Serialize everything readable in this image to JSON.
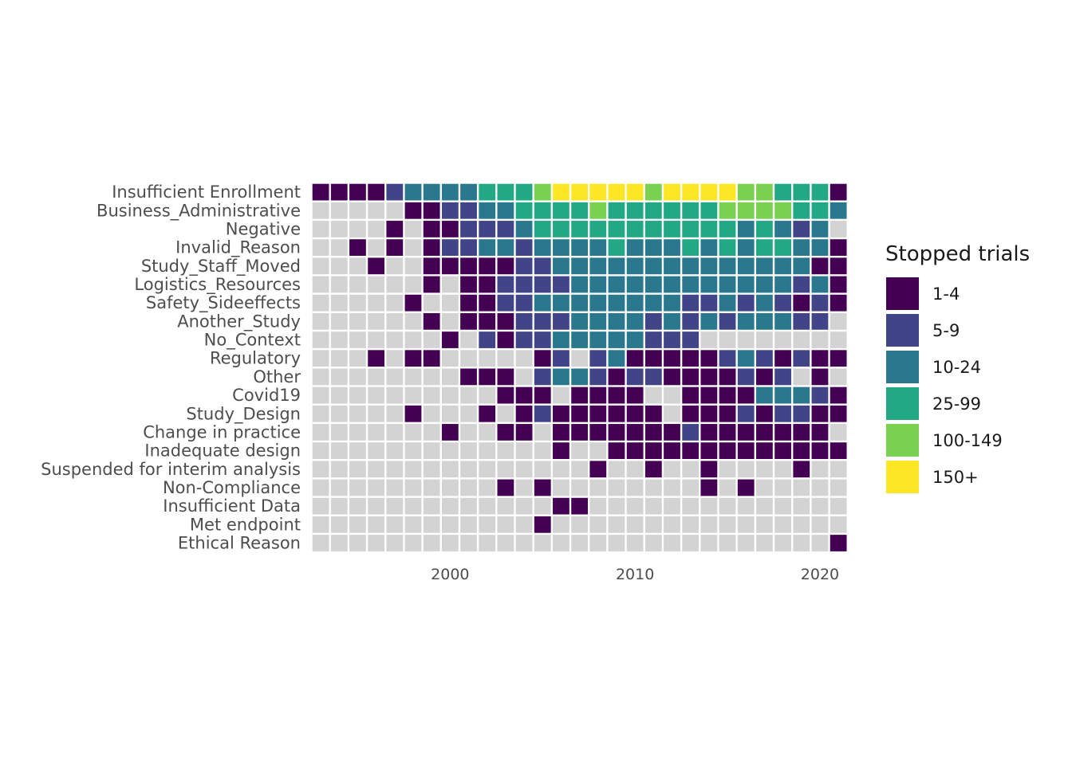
{
  "chart_data": {
    "type": "heatmap",
    "x": [
      1993,
      1994,
      1995,
      1996,
      1997,
      1998,
      1999,
      2000,
      2001,
      2002,
      2003,
      2004,
      2005,
      2006,
      2007,
      2008,
      2009,
      2010,
      2011,
      2012,
      2013,
      2014,
      2015,
      2016,
      2017,
      2018,
      2019,
      2020,
      2021
    ],
    "x_ticks": [
      2000,
      2010,
      2020
    ],
    "x_tick_labels": [
      "2000",
      "2010",
      "2020"
    ],
    "rows": [
      "Insufficient Enrollment",
      "Business_Administrative",
      "Negative",
      "Invalid_Reason",
      "Study_Staff_Moved",
      "Logistics_Resources",
      "Safety_Sideeffects",
      "Another_Study",
      "No_Context",
      "Regulatory",
      "Other",
      "Covid19",
      "Study_Design",
      "Change in practice",
      "Inadequate design",
      "Suspended for interim analysis",
      "Non-Compliance",
      "Insufficient Data",
      "Met endpoint",
      "Ethical Reason"
    ],
    "category_codes": "0 = none, 1 = 1-4, 2 = 5-9, 3 = 10-24, 4 = 25-99, 5 = 100-149, 6 = 150+",
    "values": [
      [
        1,
        1,
        1,
        1,
        2,
        3,
        3,
        3,
        3,
        4,
        4,
        4,
        5,
        6,
        6,
        6,
        6,
        6,
        5,
        6,
        6,
        6,
        6,
        5,
        5,
        4,
        4,
        4,
        1
      ],
      [
        0,
        0,
        0,
        0,
        0,
        1,
        1,
        2,
        2,
        3,
        3,
        4,
        4,
        4,
        4,
        5,
        4,
        4,
        4,
        4,
        4,
        4,
        5,
        5,
        5,
        5,
        4,
        4,
        3
      ],
      [
        0,
        0,
        0,
        0,
        1,
        0,
        1,
        1,
        2,
        2,
        2,
        3,
        4,
        4,
        4,
        4,
        4,
        4,
        4,
        4,
        4,
        4,
        4,
        3,
        4,
        3,
        2,
        3,
        0
      ],
      [
        0,
        0,
        1,
        0,
        1,
        0,
        1,
        2,
        2,
        3,
        3,
        2,
        3,
        3,
        3,
        3,
        4,
        3,
        3,
        3,
        4,
        3,
        4,
        3,
        4,
        4,
        3,
        3,
        1
      ],
      [
        0,
        0,
        0,
        1,
        0,
        0,
        1,
        1,
        1,
        1,
        1,
        2,
        2,
        3,
        3,
        3,
        3,
        3,
        3,
        3,
        3,
        3,
        3,
        3,
        3,
        3,
        3,
        1,
        1
      ],
      [
        0,
        0,
        0,
        0,
        0,
        0,
        1,
        0,
        1,
        1,
        2,
        2,
        2,
        2,
        3,
        3,
        3,
        3,
        3,
        3,
        3,
        3,
        3,
        3,
        3,
        3,
        2,
        3,
        1
      ],
      [
        0,
        0,
        0,
        0,
        0,
        1,
        0,
        0,
        1,
        1,
        2,
        2,
        3,
        3,
        3,
        3,
        3,
        3,
        3,
        3,
        2,
        2,
        3,
        2,
        3,
        2,
        1,
        2,
        1
      ],
      [
        0,
        0,
        0,
        0,
        0,
        0,
        1,
        0,
        1,
        1,
        1,
        2,
        2,
        2,
        3,
        3,
        3,
        3,
        2,
        3,
        2,
        3,
        2,
        3,
        3,
        3,
        2,
        2,
        0
      ],
      [
        0,
        0,
        0,
        0,
        0,
        0,
        0,
        1,
        0,
        2,
        1,
        2,
        2,
        3,
        3,
        3,
        3,
        3,
        2,
        2,
        2,
        0,
        0,
        0,
        0,
        0,
        0,
        0,
        0
      ],
      [
        0,
        0,
        0,
        1,
        0,
        1,
        1,
        0,
        0,
        0,
        0,
        0,
        1,
        2,
        0,
        2,
        3,
        1,
        1,
        1,
        1,
        1,
        2,
        3,
        2,
        1,
        2,
        1,
        1
      ],
      [
        0,
        0,
        0,
        0,
        0,
        0,
        0,
        0,
        1,
        1,
        1,
        0,
        2,
        3,
        3,
        2,
        1,
        2,
        2,
        1,
        1,
        1,
        1,
        2,
        1,
        2,
        0,
        1,
        0
      ],
      [
        0,
        0,
        0,
        0,
        0,
        0,
        0,
        0,
        0,
        0,
        1,
        1,
        1,
        0,
        1,
        1,
        1,
        1,
        0,
        0,
        1,
        1,
        1,
        1,
        3,
        3,
        3,
        2,
        1
      ],
      [
        0,
        0,
        0,
        0,
        0,
        1,
        0,
        0,
        0,
        1,
        0,
        1,
        2,
        1,
        1,
        1,
        1,
        1,
        1,
        0,
        1,
        1,
        1,
        2,
        1,
        2,
        2,
        1,
        1
      ],
      [
        0,
        0,
        0,
        0,
        0,
        0,
        0,
        1,
        0,
        0,
        1,
        1,
        0,
        1,
        1,
        1,
        1,
        1,
        1,
        1,
        2,
        1,
        1,
        1,
        1,
        1,
        1,
        1,
        0
      ],
      [
        0,
        0,
        0,
        0,
        0,
        0,
        0,
        0,
        0,
        0,
        0,
        0,
        0,
        1,
        0,
        0,
        1,
        1,
        1,
        1,
        1,
        1,
        1,
        1,
        1,
        1,
        1,
        1,
        1
      ],
      [
        0,
        0,
        0,
        0,
        0,
        0,
        0,
        0,
        0,
        0,
        0,
        0,
        0,
        0,
        0,
        1,
        0,
        0,
        1,
        0,
        0,
        1,
        0,
        0,
        0,
        0,
        1,
        0,
        0
      ],
      [
        0,
        0,
        0,
        0,
        0,
        0,
        0,
        0,
        0,
        0,
        1,
        0,
        1,
        0,
        0,
        0,
        0,
        0,
        0,
        0,
        0,
        1,
        0,
        1,
        0,
        0,
        0,
        0,
        0
      ],
      [
        0,
        0,
        0,
        0,
        0,
        0,
        0,
        0,
        0,
        0,
        0,
        0,
        0,
        1,
        1,
        0,
        0,
        0,
        0,
        0,
        0,
        0,
        0,
        0,
        0,
        0,
        0,
        0,
        0
      ],
      [
        0,
        0,
        0,
        0,
        0,
        0,
        0,
        0,
        0,
        0,
        0,
        0,
        1,
        0,
        0,
        0,
        0,
        0,
        0,
        0,
        0,
        0,
        0,
        0,
        0,
        0,
        0,
        0,
        0
      ],
      [
        0,
        0,
        0,
        0,
        0,
        0,
        0,
        0,
        0,
        0,
        0,
        0,
        0,
        0,
        0,
        0,
        0,
        0,
        0,
        0,
        0,
        0,
        0,
        0,
        0,
        0,
        0,
        0,
        1
      ]
    ],
    "legend": {
      "title": "Stopped trials",
      "position": "right",
      "items": [
        {
          "label": "1-4",
          "color": "#440154"
        },
        {
          "label": "5-9",
          "color": "#414487"
        },
        {
          "label": "10-24",
          "color": "#2a788e"
        },
        {
          "label": "25-99",
          "color": "#22a884"
        },
        {
          "label": "100-149",
          "color": "#7ad151"
        },
        {
          "label": "150+",
          "color": "#fde725"
        }
      ]
    },
    "empty_color": "#d3d3d3",
    "grid": false,
    "title": "",
    "xlabel": "",
    "ylabel": ""
  }
}
